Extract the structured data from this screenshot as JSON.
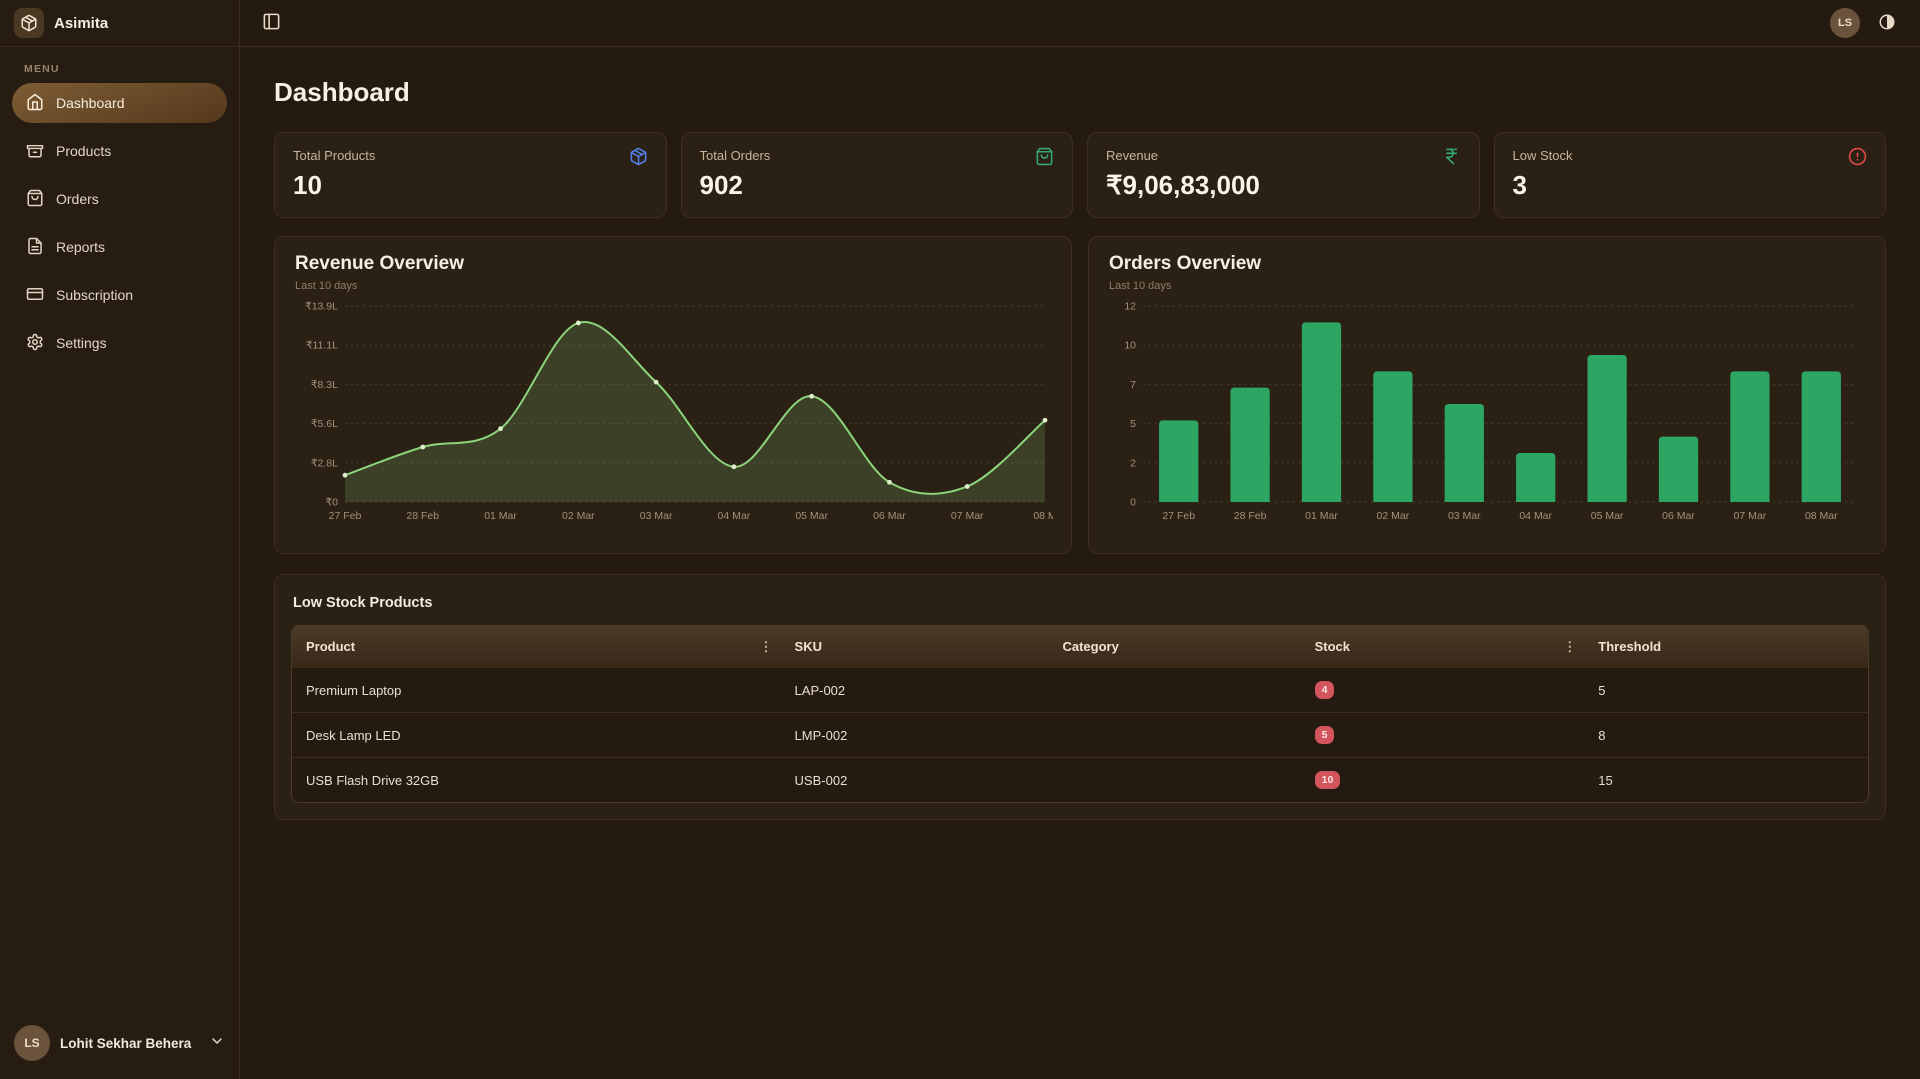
{
  "brand": {
    "name": "Asimita"
  },
  "sidebar": {
    "menu_label": "MENU",
    "items": [
      {
        "label": "Dashboard",
        "icon": "home-icon",
        "active": true
      },
      {
        "label": "Products",
        "icon": "box-icon",
        "active": false
      },
      {
        "label": "Orders",
        "icon": "shopping-bag-icon",
        "active": false
      },
      {
        "label": "Reports",
        "icon": "file-text-icon",
        "active": false
      },
      {
        "label": "Subscription",
        "icon": "credit-card-icon",
        "active": false
      },
      {
        "label": "Settings",
        "icon": "gear-icon",
        "active": false
      }
    ],
    "user": {
      "initials": "LS",
      "name": "Lohit Sekhar Behera"
    }
  },
  "header": {
    "avatar_initials": "LS"
  },
  "page": {
    "title": "Dashboard"
  },
  "stats": [
    {
      "label": "Total Products",
      "value": "10",
      "icon": "package-icon",
      "icon_color": "#4f80e8"
    },
    {
      "label": "Total Orders",
      "value": "902",
      "icon": "shopping-bag-icon",
      "icon_color": "#34a870"
    },
    {
      "label": "Revenue",
      "value": "₹9,06,83,000",
      "icon": "rupee-icon",
      "icon_color": "#34a870"
    },
    {
      "label": "Low Stock",
      "value": "3",
      "icon": "alert-circle-icon",
      "icon_color": "#e24a4a"
    }
  ],
  "chart_data": [
    {
      "type": "area",
      "title": "Revenue Overview",
      "subtitle": "Last 10 days",
      "categories": [
        "27 Feb",
        "28 Feb",
        "01 Mar",
        "02 Mar",
        "03 Mar",
        "04 Mar",
        "05 Mar",
        "06 Mar",
        "07 Mar",
        "08 M"
      ],
      "values": [
        1.9,
        3.9,
        5.2,
        12.7,
        8.5,
        2.5,
        7.5,
        1.4,
        1.1,
        5.8
      ],
      "unit": "lakh INR",
      "y_ticks": [
        "₹0",
        "₹2.8L",
        "₹5.6L",
        "₹8.3L",
        "₹11.1L",
        "₹13.9L"
      ],
      "y_max": 13.9,
      "grid": "dashed",
      "legend": "none",
      "line_color": "#8cd47c",
      "fill_color": "rgba(140,212,124,0.18)",
      "dot_color": "#ddeecb"
    },
    {
      "type": "bar",
      "title": "Orders Overview",
      "subtitle": "Last 10 days",
      "categories": [
        "27 Feb",
        "28 Feb",
        "01 Mar",
        "02 Mar",
        "03 Mar",
        "04 Mar",
        "05 Mar",
        "06 Mar",
        "07 Mar",
        "08 Mar"
      ],
      "values": [
        5,
        7,
        11,
        8,
        6,
        3,
        9,
        4,
        8,
        8
      ],
      "unit": "orders",
      "y_ticks": [
        "0",
        "2",
        "5",
        "7",
        "10",
        "12"
      ],
      "y_max": 12,
      "grid": "dashed",
      "legend": "none",
      "bar_color": "#2da563"
    }
  ],
  "low_stock": {
    "title": "Low Stock Products",
    "columns": [
      "Product",
      "SKU",
      "Category",
      "Stock",
      "Threshold"
    ],
    "rows": [
      {
        "product": "Premium Laptop",
        "sku": "LAP-002",
        "category": "",
        "stock": "4",
        "threshold": "5"
      },
      {
        "product": "Desk Lamp LED",
        "sku": "LMP-002",
        "category": "",
        "stock": "5",
        "threshold": "8"
      },
      {
        "product": "USB Flash Drive 32GB",
        "sku": "USB-002",
        "category": "",
        "stock": "10",
        "threshold": "15"
      }
    ]
  },
  "colors": {
    "background": "#241a10",
    "card": "#2b2014",
    "accent_green": "#2da563",
    "accent_line": "#8cd47c",
    "danger": "#d2545c",
    "active_item_gradient_start": "#7d5d35",
    "active_item_gradient_end": "#54381c"
  }
}
